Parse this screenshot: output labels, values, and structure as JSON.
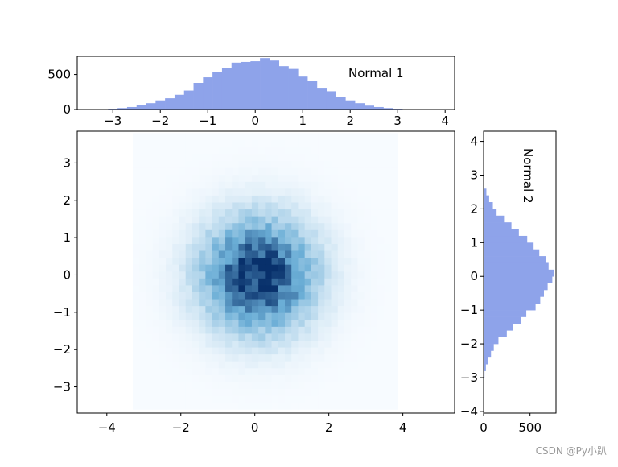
{
  "watermark": "CSDN @Py小趴",
  "colors": {
    "hist_fill": "#8ea3ea",
    "heatmap_low": "#f7fbff",
    "heatmap_high": "#08306b"
  },
  "chart_data": [
    {
      "id": "top_histogram",
      "type": "bar",
      "annotation": "Normal 1",
      "orientation": "vertical",
      "xlim": [
        -3.75,
        4.2
      ],
      "ylim": [
        0,
        760
      ],
      "xticks": [
        -3,
        -2,
        -1,
        0,
        1,
        2,
        3,
        4
      ],
      "xtick_labels": [
        "−3",
        "−2",
        "−1",
        "0",
        "1",
        "2",
        "3",
        "4"
      ],
      "yticks": [
        0,
        500
      ],
      "ytick_labels": [
        "0",
        "500"
      ],
      "bin_edges": [
        -3.3,
        -3.1,
        -2.9,
        -2.7,
        -2.5,
        -2.3,
        -2.1,
        -1.9,
        -1.7,
        -1.5,
        -1.3,
        -1.1,
        -0.9,
        -0.7,
        -0.5,
        -0.3,
        -0.1,
        0.1,
        0.3,
        0.5,
        0.7,
        0.9,
        1.1,
        1.3,
        1.5,
        1.7,
        1.9,
        2.1,
        2.3,
        2.5,
        2.7,
        2.9,
        3.1,
        3.3,
        3.5,
        3.7,
        3.9
      ],
      "values": [
        5,
        10,
        20,
        35,
        60,
        90,
        130,
        160,
        210,
        270,
        380,
        460,
        540,
        590,
        670,
        680,
        690,
        735,
        700,
        620,
        580,
        470,
        410,
        310,
        260,
        180,
        130,
        90,
        55,
        35,
        20,
        10,
        5,
        3,
        2,
        1
      ]
    },
    {
      "id": "right_histogram",
      "type": "bar",
      "annotation": "Normal 2",
      "orientation": "horizontal",
      "ylim": [
        -4.05,
        4.3
      ],
      "xlim": [
        0,
        780
      ],
      "yticks": [
        -4,
        -3,
        -2,
        -1,
        0,
        1,
        2,
        3,
        4
      ],
      "ytick_labels": [
        "−4",
        "−3",
        "−2",
        "−1",
        "0",
        "1",
        "2",
        "3",
        "4"
      ],
      "xticks": [
        0,
        500
      ],
      "xtick_labels": [
        "0",
        "500"
      ],
      "bin_edges": [
        -3.0,
        -2.8,
        -2.6,
        -2.4,
        -2.2,
        -2.0,
        -1.8,
        -1.6,
        -1.4,
        -1.2,
        -1.0,
        -0.8,
        -0.6,
        -0.4,
        -0.2,
        0.0,
        0.2,
        0.4,
        0.6,
        0.8,
        1.0,
        1.2,
        1.4,
        1.6,
        1.8,
        2.0,
        2.2,
        2.4,
        2.6
      ],
      "values": [
        10,
        25,
        50,
        80,
        110,
        160,
        250,
        320,
        400,
        460,
        560,
        610,
        650,
        690,
        740,
        760,
        700,
        670,
        600,
        530,
        470,
        380,
        300,
        220,
        140,
        100,
        60,
        30
      ]
    },
    {
      "id": "joint_heatmap",
      "type": "heatmap",
      "xlim": [
        -4.8,
        5.4
      ],
      "ylim": [
        -3.7,
        3.85
      ],
      "xticks": [
        -4,
        -2,
        0,
        2,
        4
      ],
      "xtick_labels": [
        "−4",
        "−2",
        "0",
        "2",
        "4"
      ],
      "yticks": [
        -3,
        -2,
        -1,
        0,
        1,
        2,
        3
      ],
      "ytick_labels": [
        "−3",
        "−2",
        "−1",
        "0",
        "1",
        "2",
        "3"
      ],
      "x_range": [
        -3.3,
        3.85
      ],
      "y_range": [
        -3.6,
        3.8
      ],
      "bins": 40,
      "sigma_x": 1.0,
      "sigma_y": 1.0,
      "center": [
        0.1,
        0.0
      ],
      "peak_count": 60
    }
  ]
}
